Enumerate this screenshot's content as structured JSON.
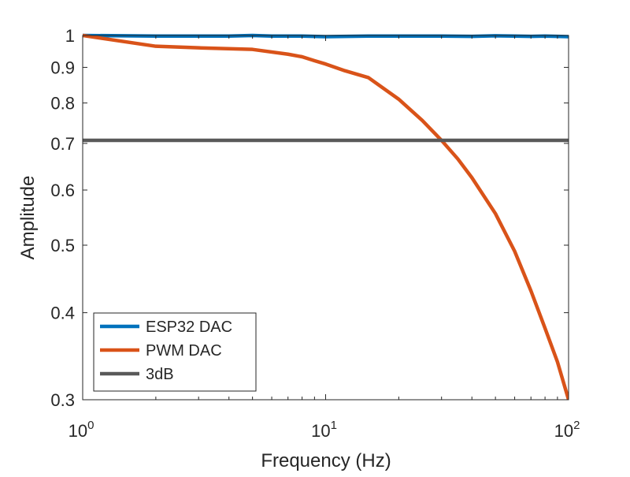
{
  "chart_data": {
    "type": "line",
    "xlabel": "Frequency (Hz)",
    "ylabel": "Amplitude",
    "xscale": "log",
    "yscale": "log",
    "xlim": [
      1,
      100
    ],
    "ylim": [
      0.3,
      1
    ],
    "grid": false,
    "legend_position": "bottom-left",
    "xticks": [
      {
        "value": 1,
        "base": "10",
        "exp": "0"
      },
      {
        "value": 10,
        "base": "10",
        "exp": "1"
      },
      {
        "value": 100,
        "base": "10",
        "exp": "2"
      }
    ],
    "yticks": [
      {
        "value": 0.3,
        "label": "0.3"
      },
      {
        "value": 0.4,
        "label": "0.4"
      },
      {
        "value": 0.5,
        "label": "0.5"
      },
      {
        "value": 0.6,
        "label": "0.6"
      },
      {
        "value": 0.7,
        "label": "0.7"
      },
      {
        "value": 0.8,
        "label": "0.8"
      },
      {
        "value": 0.9,
        "label": "0.9"
      },
      {
        "value": 1,
        "label": "1"
      }
    ],
    "series": [
      {
        "name": "ESP32 DAC",
        "color": "#0072BD",
        "x": [
          1,
          2,
          3,
          4,
          5,
          6,
          8,
          10,
          15,
          20,
          30,
          40,
          50,
          60,
          70,
          80,
          90,
          100
        ],
        "y": [
          1.0,
          0.998,
          0.998,
          0.998,
          1.0,
          0.998,
          0.998,
          0.996,
          0.998,
          0.998,
          0.998,
          0.997,
          0.999,
          0.998,
          0.997,
          0.998,
          0.997,
          0.996
        ]
      },
      {
        "name": "PWM DAC",
        "color": "#D95319",
        "x": [
          1,
          2,
          3,
          5,
          7,
          8,
          9,
          10,
          12,
          15,
          20,
          25,
          30,
          35,
          40,
          50,
          60,
          70,
          80,
          90,
          100
        ],
        "y": [
          1.0,
          0.965,
          0.96,
          0.955,
          0.94,
          0.932,
          0.92,
          0.91,
          0.89,
          0.87,
          0.81,
          0.755,
          0.707,
          0.665,
          0.625,
          0.555,
          0.49,
          0.43,
          0.38,
          0.34,
          0.3
        ]
      },
      {
        "name": "3dB",
        "color": "#595959",
        "x": [
          1,
          100
        ],
        "y": [
          0.707,
          0.707
        ]
      }
    ]
  }
}
